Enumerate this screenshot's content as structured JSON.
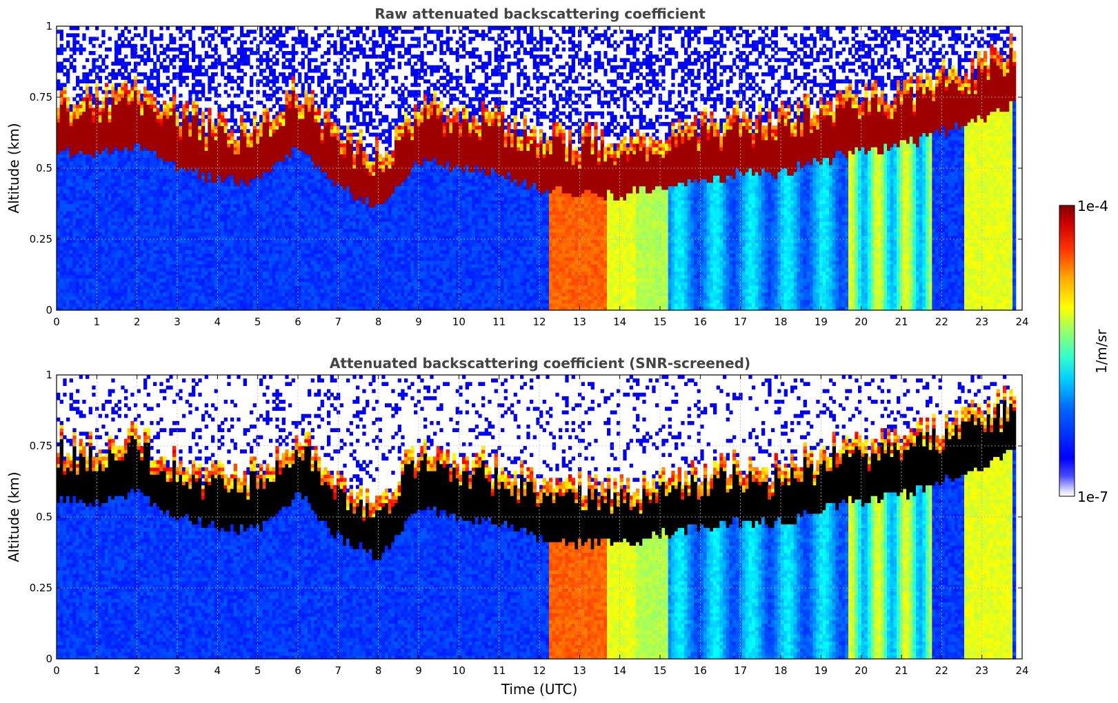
{
  "chart_data": [
    {
      "type": "heatmap",
      "title": "Raw attenuated backscattering coefficient",
      "xlabel": "",
      "ylabel": "Altitude (km)",
      "xlim": [
        0,
        24
      ],
      "ylim": [
        0,
        1
      ],
      "xticks": [
        0,
        1,
        2,
        3,
        4,
        5,
        6,
        7,
        8,
        9,
        10,
        11,
        12,
        13,
        14,
        15,
        16,
        17,
        18,
        19,
        20,
        21,
        22,
        23,
        24
      ],
      "yticks": [
        0,
        0.25,
        0.5,
        0.75,
        1
      ],
      "ytick_labels": [
        "0",
        "0.25",
        "0.5",
        "0.75",
        "1"
      ],
      "grid": true,
      "cloud_layer_base_km": [
        [
          0.5,
          0.58
        ],
        [
          1,
          0.56
        ],
        [
          2,
          0.6
        ],
        [
          3,
          0.52
        ],
        [
          4,
          0.48
        ],
        [
          5,
          0.48
        ],
        [
          6,
          0.6
        ],
        [
          7,
          0.45
        ],
        [
          8,
          0.38
        ],
        [
          9,
          0.55
        ],
        [
          10,
          0.52
        ],
        [
          11,
          0.5
        ],
        [
          12,
          0.45
        ],
        [
          13,
          0.43
        ],
        [
          14,
          0.42
        ],
        [
          15,
          0.46
        ],
        [
          16,
          0.48
        ],
        [
          17,
          0.5
        ],
        [
          18,
          0.5
        ],
        [
          19,
          0.55
        ],
        [
          20,
          0.58
        ],
        [
          21,
          0.6
        ],
        [
          22,
          0.65
        ],
        [
          23,
          0.7
        ],
        [
          23.8,
          0.75
        ]
      ],
      "screened": false
    },
    {
      "type": "heatmap",
      "title": "Attenuated backscattering coefficient (SNR-screened)",
      "xlabel": "Time (UTC)",
      "ylabel": "Altitude (km)",
      "xlim": [
        0,
        24
      ],
      "ylim": [
        0,
        1
      ],
      "xticks": [
        0,
        1,
        2,
        3,
        4,
        5,
        6,
        7,
        8,
        9,
        10,
        11,
        12,
        13,
        14,
        15,
        16,
        17,
        18,
        19,
        20,
        21,
        22,
        23,
        24
      ],
      "yticks": [
        0,
        0.25,
        0.5,
        0.75,
        1
      ],
      "ytick_labels": [
        "0",
        "0.25",
        "0.5",
        "0.75",
        "1"
      ],
      "grid": true,
      "screened": true
    }
  ],
  "colorbar": {
    "label": "1/m/sr",
    "min_label": "1e-7",
    "max_label": "1e-4",
    "scale": "log",
    "colormap": "jet"
  }
}
